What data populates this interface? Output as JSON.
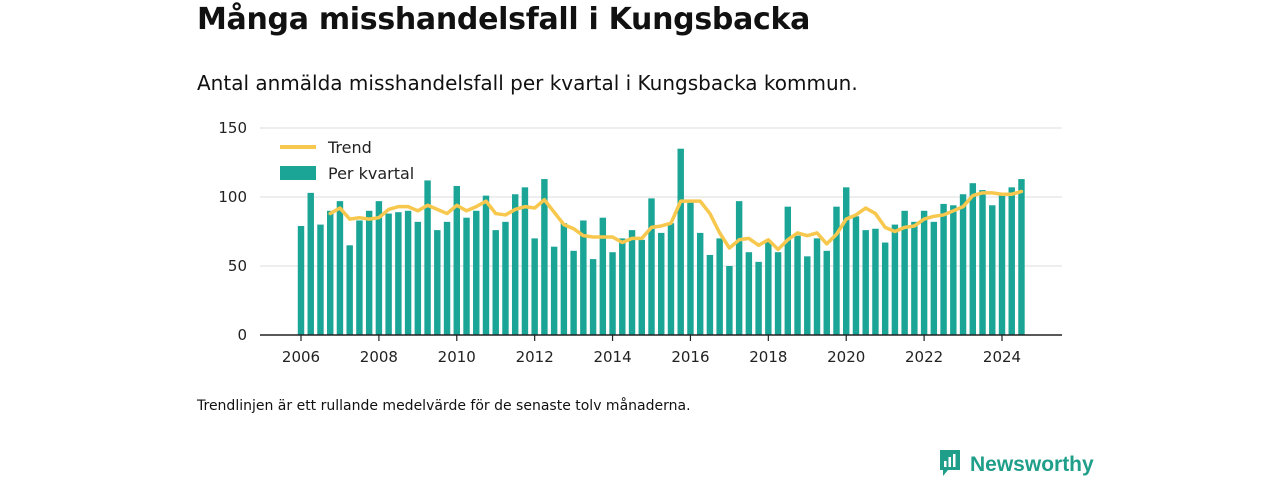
{
  "title": "Många misshandelsfall i Kungsbacka",
  "subtitle": "Antal anmälda misshandelsfall per kvartal i Kungsbacka kommun.",
  "note": "Trendlinjen är ett rullande medelvärde för de senaste tolv månaderna.",
  "brand": {
    "name": "Newsworthy",
    "icon": "newsworthy-logo-icon"
  },
  "colors": {
    "bars": "#1ba597",
    "trend": "#f7c84d",
    "grid": "#dddddd",
    "axis": "#222222"
  },
  "chart_data": {
    "type": "bar",
    "title": "Många misshandelsfall i Kungsbacka",
    "subtitle": "Antal anmälda misshandelsfall per kvartal i Kungsbacka kommun.",
    "ylim": [
      0,
      150
    ],
    "yticks": [
      "0",
      "50",
      "100",
      "150"
    ],
    "xticks": [
      "2006",
      "2008",
      "2010",
      "2012",
      "2014",
      "2016",
      "2018",
      "2020",
      "2022",
      "2024"
    ],
    "xtick_years": [
      2006,
      2008,
      2010,
      2012,
      2014,
      2016,
      2018,
      2020,
      2022,
      2024
    ],
    "x_start_year": 2006,
    "grid": true,
    "legend_position": "top-left",
    "series": [
      {
        "name": "Per kvartal",
        "kind": "bar",
        "values": [
          79,
          103,
          80,
          90,
          97,
          65,
          83,
          90,
          97,
          88,
          89,
          90,
          82,
          112,
          76,
          82,
          108,
          85,
          90,
          101,
          76,
          82,
          102,
          107,
          70,
          113,
          64,
          81,
          61,
          83,
          55,
          85,
          60,
          70,
          76,
          69,
          99,
          74,
          81,
          135,
          96,
          74,
          58,
          70,
          50,
          97,
          60,
          53,
          68,
          60,
          93,
          72,
          57,
          70,
          61,
          93,
          107,
          86,
          76,
          77,
          67,
          80,
          90,
          82,
          90,
          82,
          95,
          94,
          102,
          110,
          105,
          94,
          103,
          107,
          113
        ]
      },
      {
        "name": "Trend",
        "kind": "line",
        "values": [
          null,
          null,
          null,
          88,
          92,
          84,
          85,
          84,
          85,
          91,
          93,
          93,
          90,
          94,
          91,
          88,
          94,
          90,
          93,
          97,
          88,
          87,
          91,
          93,
          92,
          98,
          89,
          80,
          77,
          72,
          71,
          71,
          71,
          67,
          70,
          70,
          78,
          79,
          81,
          97,
          97,
          97,
          88,
          74,
          63,
          69,
          70,
          65,
          69,
          62,
          69,
          74,
          72,
          74,
          66,
          73,
          84,
          87,
          92,
          88,
          78,
          75,
          78,
          79,
          84,
          86,
          87,
          90,
          93,
          101,
          103,
          103,
          102,
          102,
          104
        ]
      }
    ]
  }
}
